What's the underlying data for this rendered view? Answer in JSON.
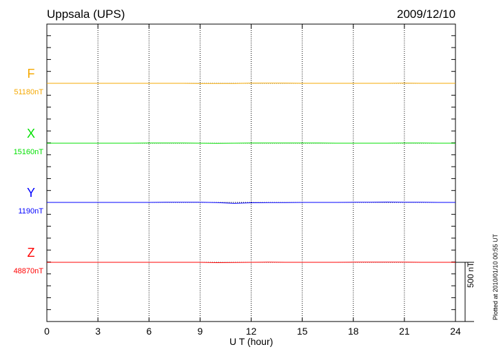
{
  "chart_data": {
    "type": "line",
    "title": "Uppsala (UPS)",
    "date": "2009/12/10",
    "xlabel": "U T (hour)",
    "xlim": [
      0,
      24
    ],
    "xticks": [
      "0",
      "3",
      "6",
      "9",
      "12",
      "15",
      "18",
      "21",
      "24"
    ],
    "grid": true,
    "scale_bar": "500 nT",
    "plotted_note": "Plotted at 2010/01/10 00:55 UT",
    "x": [
      0,
      1,
      2,
      3,
      4,
      5,
      6,
      7,
      8,
      9,
      10,
      11,
      12,
      13,
      14,
      15,
      16,
      17,
      18,
      19,
      20,
      21,
      22,
      23,
      24
    ],
    "series": [
      {
        "name": "F",
        "baseline": "51180nT",
        "color": "#f5a800",
        "values": [
          0,
          0,
          0,
          0,
          0,
          0,
          0,
          0,
          0,
          -1,
          -2,
          -1,
          1,
          2,
          1,
          0,
          0,
          0,
          0,
          0,
          0,
          1,
          0,
          0,
          0
        ]
      },
      {
        "name": "X",
        "baseline": "15160nT",
        "color": "#00e000",
        "values": [
          0,
          0,
          0,
          0,
          0,
          0,
          1,
          1,
          1,
          0,
          -1,
          0,
          2,
          2,
          1,
          1,
          1,
          0,
          0,
          0,
          0,
          1,
          1,
          0,
          0
        ]
      },
      {
        "name": "Y",
        "baseline": "1190nT",
        "color": "#0000ff",
        "values": [
          0,
          0,
          0,
          0,
          0,
          0,
          0,
          1,
          1,
          1,
          -1,
          -8,
          -3,
          -2,
          -1,
          0,
          0,
          0,
          1,
          1,
          3,
          2,
          1,
          0,
          0
        ]
      },
      {
        "name": "Z",
        "baseline": "48870nT",
        "color": "#ff0000",
        "values": [
          0,
          0,
          0,
          0,
          0,
          0,
          0,
          0,
          0,
          0,
          -3,
          -2,
          0,
          1,
          0,
          0,
          0,
          0,
          1,
          2,
          2,
          1,
          0,
          0,
          0
        ]
      }
    ]
  }
}
